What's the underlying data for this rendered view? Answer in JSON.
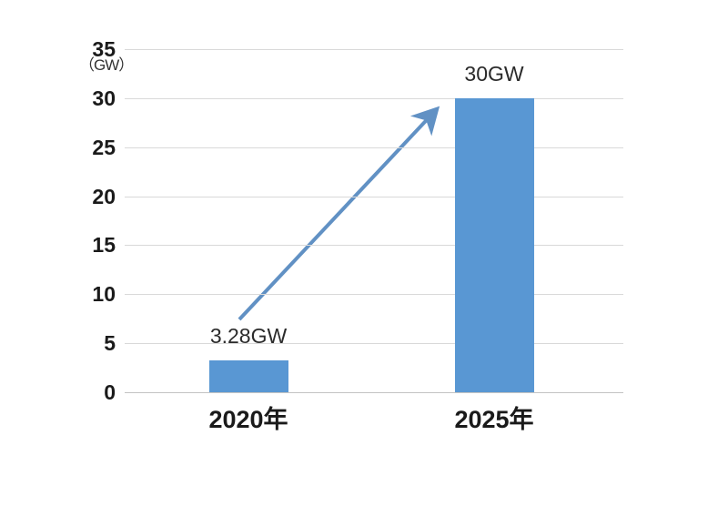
{
  "chart_data": {
    "type": "bar",
    "title": "",
    "unit_label": "（GW）",
    "categories": [
      "2020年",
      "2025年"
    ],
    "values": [
      3.28,
      30
    ],
    "bar_labels": [
      "3.28GW",
      "30GW"
    ],
    "yticks": [
      0,
      5,
      10,
      15,
      20,
      25,
      30,
      35
    ],
    "ylim": [
      0,
      35
    ],
    "xlabel": "",
    "ylabel": "GW",
    "grid": true,
    "legend": "none",
    "bar_color": "#5997d3",
    "arrow_color": "#6191c4",
    "annotation": {
      "type": "growth-arrow",
      "from_value": "3.28GW",
      "to_value": "30GW"
    }
  }
}
